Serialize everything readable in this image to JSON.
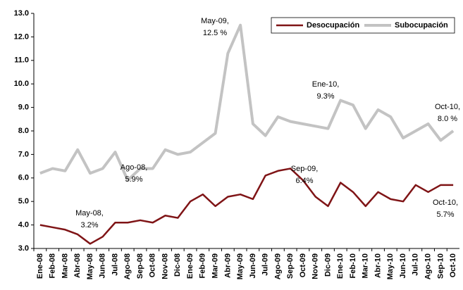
{
  "chart_data": {
    "type": "line",
    "categories": [
      "Ene-08",
      "Feb-08",
      "Mar-08",
      "Abr-08",
      "May-08",
      "Jun-08",
      "Jul-08",
      "Ago-08",
      "Sep-08",
      "Oct-08",
      "Nov-08",
      "Dic-08",
      "Ene-09",
      "Feb-09",
      "Mar-09",
      "Abr-09",
      "May-09",
      "Jun-09",
      "Jul-09",
      "Ago-09",
      "Sep-09",
      "Oct-09",
      "Nov-09",
      "Dic-09",
      "Ene-10",
      "Feb-10",
      "Mar-10",
      "Abr-10",
      "May-10",
      "Jun-10",
      "Jul-10",
      "Ago-10",
      "Sep-10",
      "Oct-10"
    ],
    "series": [
      {
        "name": "Desocupación",
        "color": "#7f1416",
        "values": [
          4.0,
          3.9,
          3.8,
          3.6,
          3.2,
          3.5,
          4.1,
          4.1,
          4.2,
          4.1,
          4.4,
          4.3,
          5.0,
          5.3,
          4.8,
          5.2,
          5.3,
          5.1,
          6.1,
          6.3,
          6.4,
          5.9,
          5.2,
          4.8,
          5.8,
          5.4,
          4.8,
          5.4,
          5.1,
          5.0,
          5.7,
          5.4,
          5.7,
          5.7
        ]
      },
      {
        "name": "Subocupación",
        "color": "#c3c3c3",
        "values": [
          6.2,
          6.4,
          6.3,
          7.2,
          6.2,
          6.4,
          7.1,
          5.9,
          6.4,
          6.4,
          7.2,
          7.0,
          7.1,
          7.5,
          7.9,
          11.3,
          12.5,
          8.3,
          7.8,
          8.6,
          8.4,
          8.3,
          8.2,
          8.1,
          9.3,
          9.1,
          8.1,
          8.9,
          8.6,
          7.7,
          8.0,
          8.3,
          7.6,
          8.0
        ]
      }
    ],
    "ylim": [
      3,
      13
    ],
    "yticks": [
      {
        "value": 3,
        "label": "3.0"
      },
      {
        "value": 4,
        "label": "4.0"
      },
      {
        "value": 5,
        "label": "5.0"
      },
      {
        "value": 6,
        "label": "6.0"
      },
      {
        "value": 7,
        "label": "7.0"
      },
      {
        "value": 8,
        "label": "8.0"
      },
      {
        "value": 9,
        "label": "9.0"
      },
      {
        "value": 10,
        "label": "10.0"
      },
      {
        "value": 11,
        "label": "11.0"
      },
      {
        "value": 12,
        "label": "12.0"
      },
      {
        "value": 13,
        "label": "13.0"
      }
    ],
    "grid": false,
    "legend": "top-right",
    "annotations": [
      [
        "May-08,",
        "3.2%"
      ],
      [
        "Ago-08,",
        "5.9%"
      ],
      [
        "May-09,",
        "12.5 %"
      ],
      [
        "Ene-10,",
        "9.3%"
      ],
      [
        "Sep-09,",
        "6.4%"
      ],
      [
        "Oct-10,",
        "8.0 %"
      ],
      [
        "Oct-10,",
        "5.7%"
      ]
    ]
  }
}
